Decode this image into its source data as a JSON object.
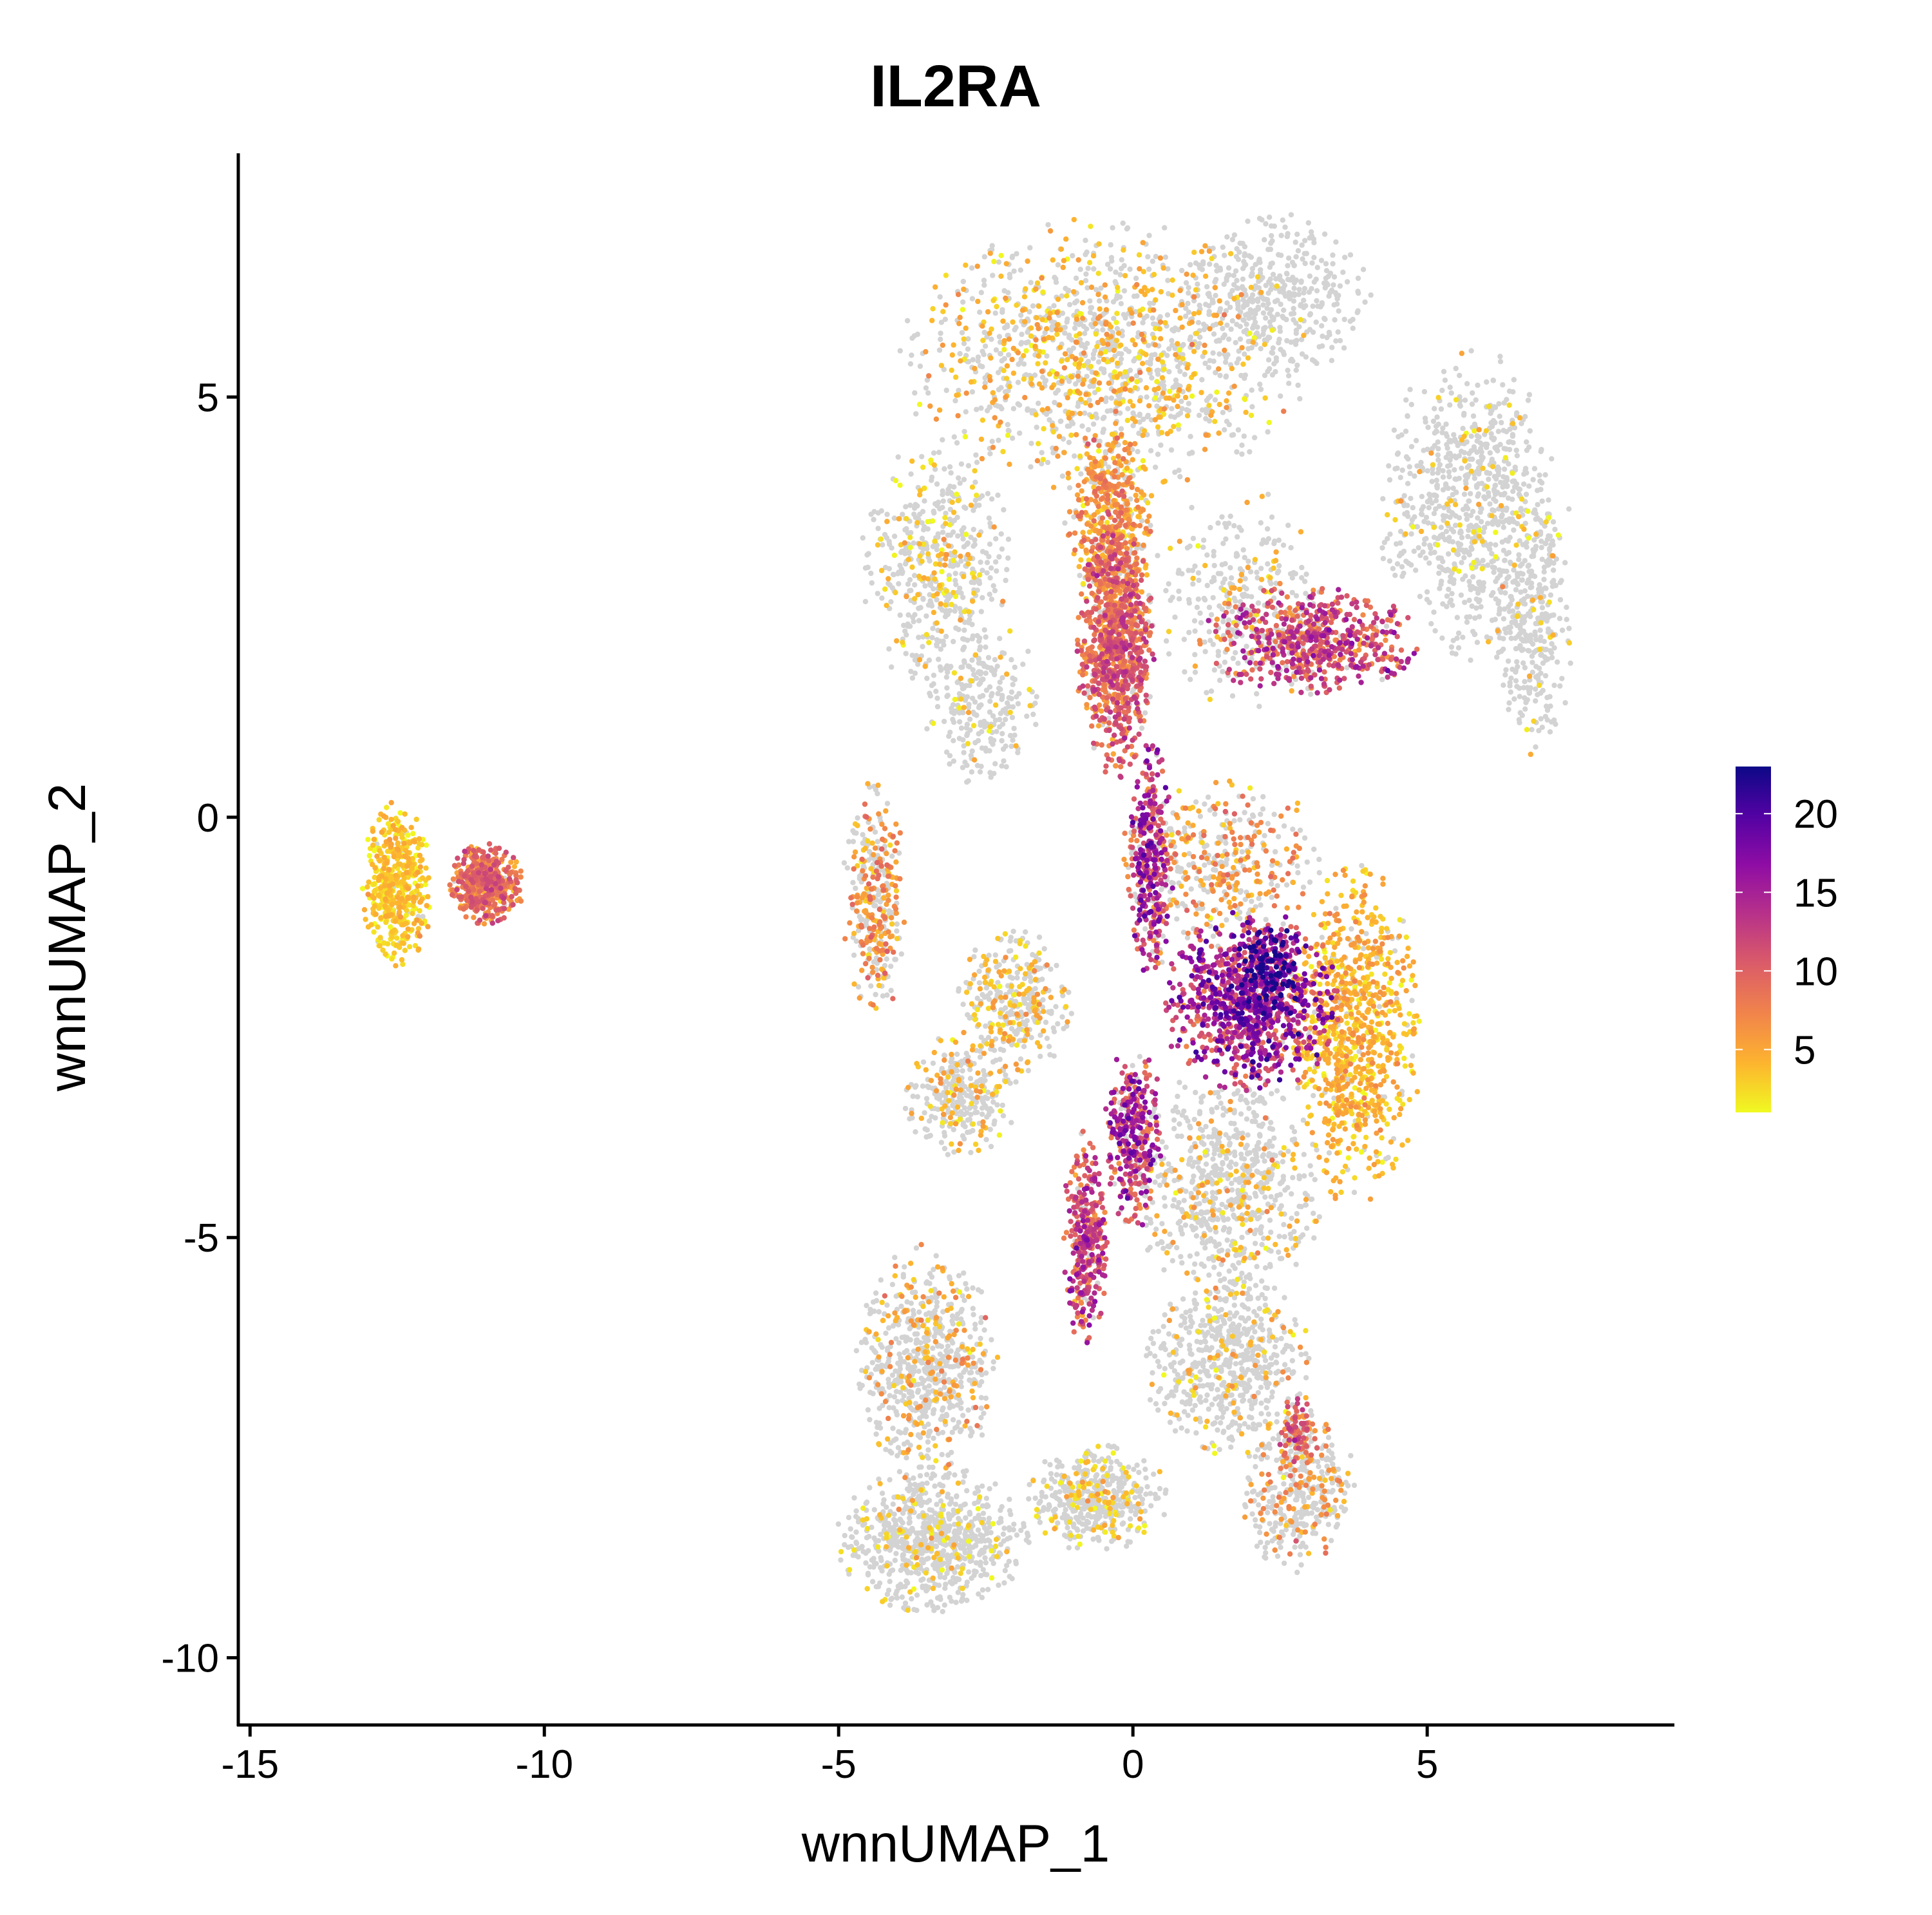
{
  "chart_data": {
    "type": "scatter",
    "title": "IL2RA",
    "xlabel": "wnnUMAP_1",
    "ylabel": "wnnUMAP_2",
    "xlim": [
      -15.2,
      9.2
    ],
    "ylim": [
      -10.8,
      7.9
    ],
    "x_ticks": [
      {
        "value": -15,
        "label": "-15"
      },
      {
        "value": -10,
        "label": "-10"
      },
      {
        "value": -5,
        "label": "-5"
      },
      {
        "value": 0,
        "label": "0"
      },
      {
        "value": 5,
        "label": "5"
      }
    ],
    "y_ticks": [
      {
        "value": 5,
        "label": "5"
      },
      {
        "value": 0,
        "label": "0"
      },
      {
        "value": -5,
        "label": "-5"
      },
      {
        "value": -10,
        "label": "-10"
      }
    ],
    "grid": false,
    "legend": {
      "placement": "right",
      "type": "colorbar",
      "range": [
        1,
        23
      ],
      "ticks": [
        {
          "value": 5,
          "label": "5"
        },
        {
          "value": 10,
          "label": "10"
        },
        {
          "value": 15,
          "label": "15"
        },
        {
          "value": 20,
          "label": "20"
        }
      ],
      "colors": [
        "#f0f921",
        "#fdb42f",
        "#f1844b",
        "#db5c68",
        "#b83289",
        "#8f0da4",
        "#5302a3",
        "#0d0887"
      ]
    },
    "background_color": "#d3d3d3",
    "clusters": [
      {
        "cx": 2.4,
        "cy": 6.2,
        "rx": 1.5,
        "ry": 0.9,
        "n": 400,
        "expr_frac": 0.0,
        "mean": 0
      },
      {
        "cx": -0.5,
        "cy": 5.5,
        "rx": 3.2,
        "ry": 1.5,
        "n": 1300,
        "expr_frac": 0.38,
        "mean": 4
      },
      {
        "cx": -3.3,
        "cy": 3.0,
        "rx": 1.2,
        "ry": 1.4,
        "n": 500,
        "expr_frac": 0.2,
        "mean": 3
      },
      {
        "cx": -2.6,
        "cy": 1.4,
        "rx": 0.9,
        "ry": 1.0,
        "n": 250,
        "expr_frac": 0.1,
        "mean": 3
      },
      {
        "cx": 1.8,
        "cy": 2.6,
        "rx": 1.4,
        "ry": 1.2,
        "n": 300,
        "expr_frac": 0.15,
        "mean": 4
      },
      {
        "cx": 5.8,
        "cy": 3.7,
        "rx": 1.5,
        "ry": 1.7,
        "n": 800,
        "expr_frac": 0.1,
        "mean": 3
      },
      {
        "cx": 6.8,
        "cy": 2.2,
        "rx": 0.6,
        "ry": 1.4,
        "n": 300,
        "expr_frac": 0.06,
        "mean": 3
      },
      {
        "cx": -0.3,
        "cy": 2.0,
        "rx": 0.6,
        "ry": 1.4,
        "n": 900,
        "expr_frac": 0.92,
        "mean": 9
      },
      {
        "cx": -0.4,
        "cy": 3.5,
        "rx": 0.7,
        "ry": 1.0,
        "n": 500,
        "expr_frac": 0.85,
        "mean": 6
      },
      {
        "cx": 3.0,
        "cy": 2.1,
        "rx": 1.7,
        "ry": 0.6,
        "n": 600,
        "expr_frac": 0.92,
        "mean": 11
      },
      {
        "cx": 0.3,
        "cy": -0.5,
        "rx": 0.35,
        "ry": 1.3,
        "n": 350,
        "expr_frac": 0.9,
        "mean": 13
      },
      {
        "cx": 2.0,
        "cy": -2.2,
        "rx": 1.4,
        "ry": 1.0,
        "n": 1000,
        "expr_frac": 0.95,
        "mean": 14
      },
      {
        "cx": 2.3,
        "cy": -1.8,
        "rx": 0.5,
        "ry": 0.5,
        "n": 150,
        "expr_frac": 1.0,
        "mean": 20
      },
      {
        "cx": 3.8,
        "cy": -2.6,
        "rx": 1.0,
        "ry": 1.9,
        "n": 900,
        "expr_frac": 0.92,
        "mean": 4
      },
      {
        "cx": 1.5,
        "cy": -0.5,
        "rx": 1.6,
        "ry": 0.9,
        "n": 400,
        "expr_frac": 0.45,
        "mean": 6
      },
      {
        "cx": 0.0,
        "cy": -3.8,
        "rx": 0.5,
        "ry": 1.0,
        "n": 350,
        "expr_frac": 0.85,
        "mean": 13
      },
      {
        "cx": -0.8,
        "cy": -5.0,
        "rx": 0.35,
        "ry": 1.2,
        "n": 350,
        "expr_frac": 0.9,
        "mean": 11
      },
      {
        "cx": 1.6,
        "cy": -4.4,
        "rx": 1.5,
        "ry": 1.3,
        "n": 700,
        "expr_frac": 0.2,
        "mean": 4
      },
      {
        "cx": 1.6,
        "cy": -6.5,
        "rx": 1.3,
        "ry": 1.0,
        "n": 600,
        "expr_frac": 0.15,
        "mean": 4
      },
      {
        "cx": -2.0,
        "cy": -2.2,
        "rx": 0.9,
        "ry": 0.8,
        "n": 350,
        "expr_frac": 0.35,
        "mean": 4
      },
      {
        "cx": -2.9,
        "cy": -3.3,
        "rx": 0.9,
        "ry": 0.7,
        "n": 300,
        "expr_frac": 0.25,
        "mean": 4
      },
      {
        "cx": -4.4,
        "cy": -1.0,
        "rx": 0.5,
        "ry": 1.3,
        "n": 350,
        "expr_frac": 0.55,
        "mean": 6
      },
      {
        "cx": -3.5,
        "cy": -6.5,
        "rx": 1.1,
        "ry": 1.3,
        "n": 700,
        "expr_frac": 0.25,
        "mean": 5
      },
      {
        "cx": -3.4,
        "cy": -8.6,
        "rx": 1.5,
        "ry": 0.8,
        "n": 800,
        "expr_frac": 0.12,
        "mean": 3
      },
      {
        "cx": -0.6,
        "cy": -8.1,
        "rx": 1.1,
        "ry": 0.6,
        "n": 450,
        "expr_frac": 0.25,
        "mean": 3
      },
      {
        "cx": 2.8,
        "cy": -8.0,
        "rx": 0.9,
        "ry": 0.9,
        "n": 400,
        "expr_frac": 0.3,
        "mean": 6
      },
      {
        "cx": 2.8,
        "cy": -7.3,
        "rx": 0.3,
        "ry": 0.4,
        "n": 100,
        "expr_frac": 0.85,
        "mean": 9
      },
      {
        "cx": -12.5,
        "cy": -0.8,
        "rx": 0.55,
        "ry": 0.9,
        "n": 500,
        "expr_frac": 0.95,
        "mean": 3
      },
      {
        "cx": -11.0,
        "cy": -0.8,
        "rx": 0.6,
        "ry": 0.45,
        "n": 500,
        "expr_frac": 0.97,
        "mean": 8
      }
    ]
  }
}
